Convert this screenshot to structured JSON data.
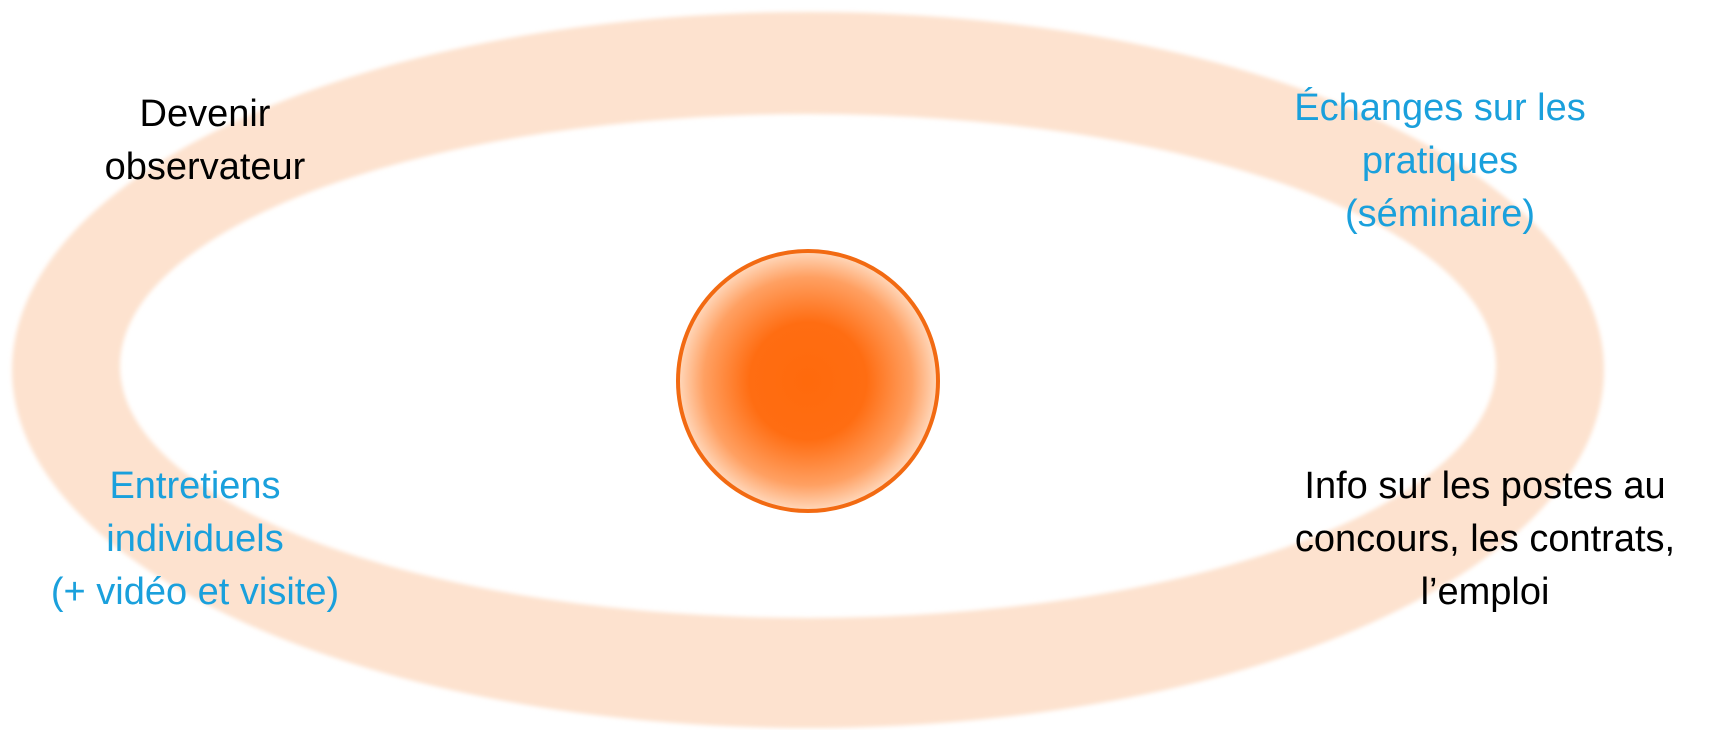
{
  "colors": {
    "ring": "#fde2cf",
    "ring_edge": "#f9c9a6",
    "core": "#ff6a0c",
    "core_light": "#ffd9bd",
    "core_stroke": "#f26a12",
    "text_dark": "#000000",
    "text_blue": "#1aa0dc"
  },
  "nodes": [
    {
      "id": "top-left",
      "lines": [
        "Devenir",
        "observateur"
      ],
      "color": "dark"
    },
    {
      "id": "top-right",
      "lines": [
        "Échanges sur les",
        "pratiques",
        "(séminaire)"
      ],
      "color": "blue"
    },
    {
      "id": "bottom-left",
      "lines": [
        "Entretiens",
        "individuels",
        "(+ vidéo et visite)"
      ],
      "color": "blue"
    },
    {
      "id": "bottom-right",
      "lines": [
        "Info sur les postes au",
        "concours, les contrats,",
        "l’emploi"
      ],
      "color": "dark"
    }
  ]
}
